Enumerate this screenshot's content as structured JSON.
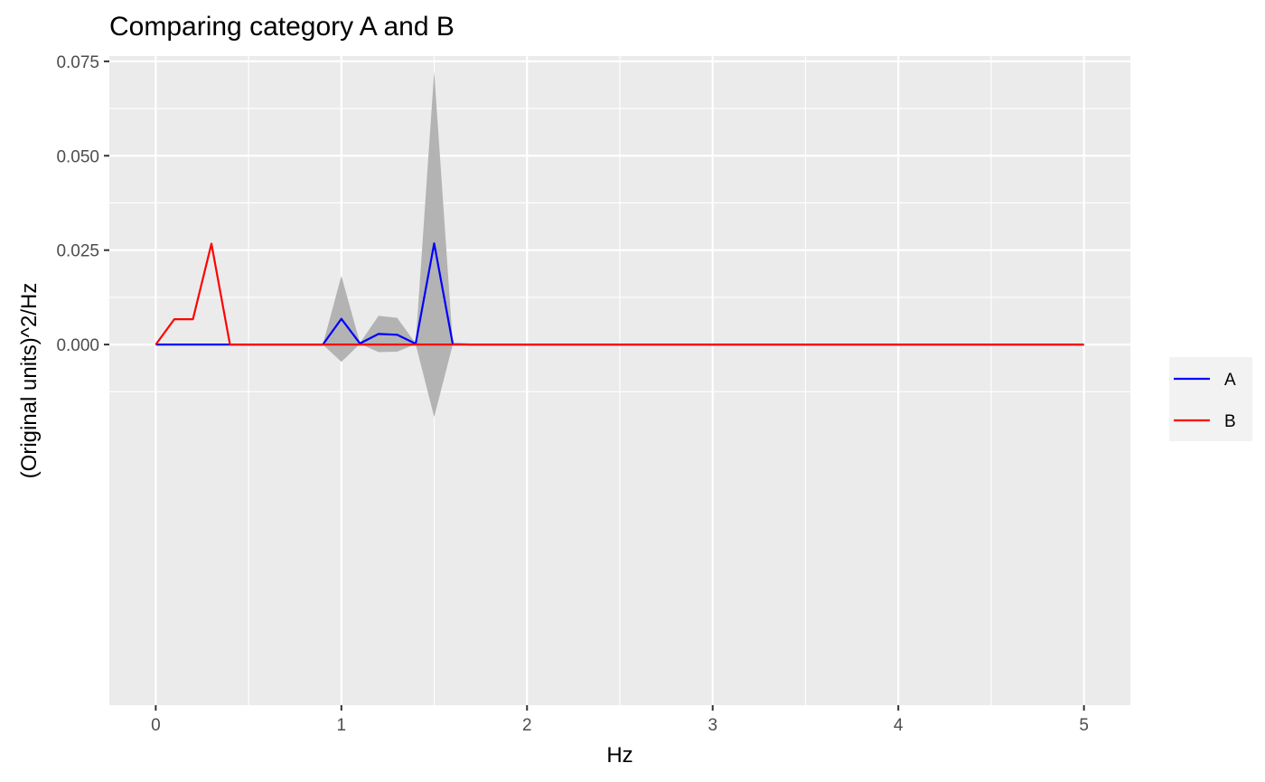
{
  "chart_data": {
    "type": "line",
    "title": "Comparing category A and B",
    "xlabel": "Hz",
    "ylabel": "(Original units)^2/Hz",
    "xlim": [
      -0.25,
      5.25
    ],
    "ylim": [
      -0.0955,
      0.0764
    ],
    "xticks": [
      0,
      1,
      2,
      3,
      4,
      5
    ],
    "xtick_labels": [
      "0",
      "1",
      "2",
      "3",
      "4",
      "5"
    ],
    "yticks": [
      0.0,
      0.025,
      0.05,
      0.075
    ],
    "ytick_labels": [
      "0.000",
      "0.025",
      "0.050",
      "0.075"
    ],
    "grid": true,
    "legend_position": "right",
    "x": [
      0,
      0.1,
      0.2,
      0.3,
      0.4,
      0.5,
      0.6,
      0.7,
      0.8,
      0.9,
      1.0,
      1.1,
      1.2,
      1.3,
      1.4,
      1.5,
      1.6,
      1.7,
      1.8,
      1.9,
      2.0,
      2.5,
      3.0,
      3.5,
      4.0,
      4.5,
      5.0
    ],
    "series": [
      {
        "name": "A",
        "color": "#0000ff",
        "values": [
          0,
          0,
          0,
          0,
          0,
          0,
          0,
          0,
          0,
          0,
          0.0068,
          0.0003,
          0.0028,
          0.0026,
          0.0002,
          0.0268,
          0.0001,
          0,
          0,
          0,
          0,
          0,
          0,
          0,
          0,
          0,
          0
        ]
      },
      {
        "name": "B",
        "color": "#ff0000",
        "values": [
          0,
          0.0067,
          0.0067,
          0.0267,
          0,
          0,
          0,
          0,
          0,
          0,
          0,
          0,
          0,
          0,
          0,
          0,
          0,
          0,
          0,
          0,
          0,
          0,
          0,
          0,
          0,
          0,
          0
        ]
      }
    ],
    "ribbon": {
      "color": "#b3b3b3",
      "upper": [
        0,
        0,
        0,
        0,
        0,
        0,
        0,
        0,
        0,
        0,
        0.0182,
        0.0004,
        0.0076,
        0.0071,
        0.0003,
        0.0723,
        0.0002,
        0,
        0,
        0,
        0,
        0,
        0,
        0,
        0,
        0,
        0
      ],
      "lower": [
        0,
        0,
        0,
        0,
        0,
        0,
        0,
        0,
        0,
        0,
        -0.0046,
        0.0002,
        -0.002,
        -0.0019,
        0.0001,
        -0.0192,
        0.0,
        0,
        0,
        0,
        0,
        0,
        0,
        0,
        0,
        0,
        0
      ]
    }
  }
}
